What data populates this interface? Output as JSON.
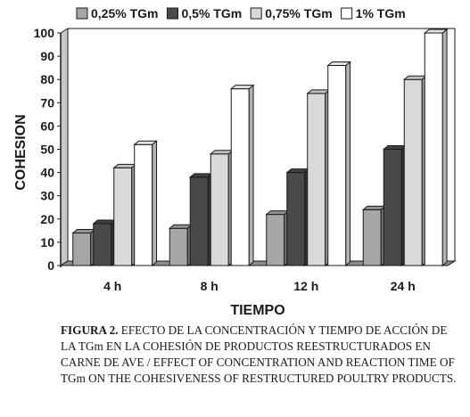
{
  "chart_data": {
    "type": "bar",
    "categories": [
      "4 h",
      "8 h",
      "12 h",
      "24 h"
    ],
    "series": [
      {
        "name": "0,25% TGm",
        "color": "#a6a6a6",
        "values": [
          14,
          16,
          22,
          24
        ]
      },
      {
        "name": "0,5% TGm",
        "color": "#4a4a4a",
        "values": [
          18,
          38,
          40,
          50
        ]
      },
      {
        "name": "0,75% TGm",
        "color": "#d9d9d9",
        "values": [
          42,
          48,
          74,
          80
        ]
      },
      {
        "name": "1% TGm",
        "color": "#ffffff",
        "values": [
          52,
          76,
          86,
          100
        ]
      }
    ],
    "xlabel": "TIEMPO",
    "ylabel": "COHESION",
    "ylim": [
      0,
      100
    ],
    "yticks": [
      0,
      10,
      20,
      30,
      40,
      50,
      60,
      70,
      80,
      90,
      100
    ],
    "legend_position": "top",
    "grid": false,
    "style": "3d-bar"
  },
  "caption": {
    "label": "FIGURA 2.",
    "text": "EFECTO DE LA CONCENTRACIÓN Y TIEMPO DE ACCIÓN DE LA TGm EN LA COHESIÓN DE PRODUCTOS REESTRUCTURADOS EN CARNE DE AVE / EFFECT OF CONCENTRATION AND REACTION TIME OF TGm ON THE COHESIVENESS OF RESTRUCTURED POULTRY PRODUCTS."
  }
}
